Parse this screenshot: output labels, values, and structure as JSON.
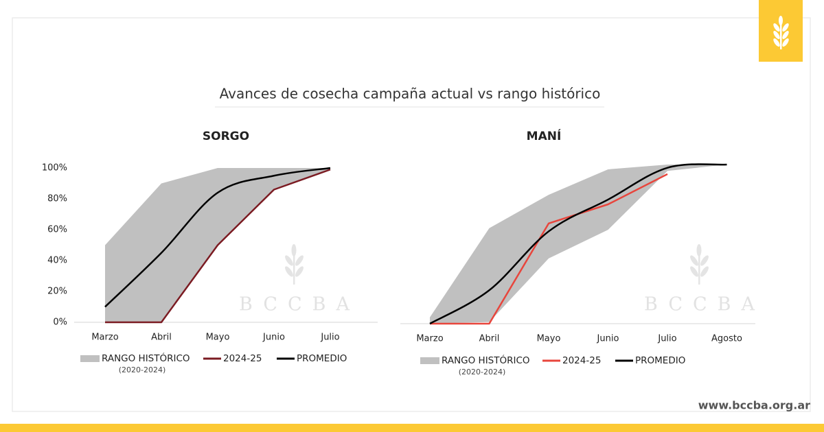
{
  "title": "Avances de cosecha campaña actual vs rango histórico",
  "website": "www.bccba.org.ar",
  "watermark": "BCCBA",
  "chart_data": [
    {
      "type": "line",
      "title": "SORGO",
      "categories": [
        "Marzo",
        "Abril",
        "Mayo",
        "Junio",
        "Julio"
      ],
      "ylim": [
        0,
        100
      ],
      "yticks": [
        {
          "value": 0,
          "label": "0%"
        },
        {
          "value": 20,
          "label": "20%"
        },
        {
          "value": 40,
          "label": "40%"
        },
        {
          "value": 60,
          "label": "60%"
        },
        {
          "value": 80,
          "label": "80%"
        },
        {
          "value": 100,
          "label": "100%"
        }
      ],
      "series": [
        {
          "name": "RANGO HISTÓRICO",
          "period": "(2020-2024)",
          "color": "#c0c0c0",
          "upper": [
            50,
            90,
            100,
            100,
            100
          ],
          "lower": [
            0,
            0,
            50,
            86,
            99
          ]
        },
        {
          "name": "2024-25",
          "color": "#7b1b22",
          "values": [
            0,
            0,
            50,
            86,
            99
          ]
        },
        {
          "name": "PROMEDIO",
          "color": "#000000",
          "smooth": true,
          "values": [
            10,
            45,
            84,
            95,
            100
          ]
        }
      ]
    },
    {
      "type": "line",
      "title": "MANÍ",
      "categories": [
        "Marzo",
        "Abril",
        "Mayo",
        "Junio",
        "Julio",
        "Agosto"
      ],
      "ylim": [
        0,
        100
      ],
      "series": [
        {
          "name": "RANGO HISTÓRICO",
          "period": "(2020-2024)",
          "color": "#c0c0c0",
          "upper": [
            4,
            60,
            81,
            97,
            100,
            100
          ],
          "lower": [
            0,
            1,
            41,
            59,
            96,
            100
          ]
        },
        {
          "name": "2024-25",
          "color": "#e8453c",
          "values": [
            0,
            0,
            63,
            75,
            94,
            null
          ]
        },
        {
          "name": "PROMEDIO",
          "color": "#000000",
          "smooth": true,
          "values": [
            0,
            21,
            58,
            78,
            98,
            100
          ]
        }
      ]
    }
  ]
}
